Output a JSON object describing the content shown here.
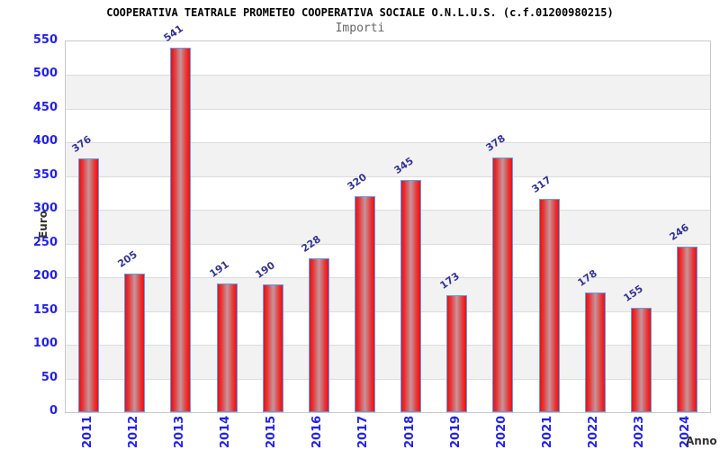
{
  "header": {
    "title": "COOPERATIVA TEATRALE PROMETEO COOPERATIVA SOCIALE O.N.L.U.S. (c.f.01200980215)",
    "subtitle": "Importi"
  },
  "chart_data": {
    "type": "bar",
    "title": "COOPERATIVA TEATRALE PROMETEO COOPERATIVA SOCIALE O.N.L.U.S. (c.f.01200980215)",
    "subtitle": "Importi",
    "categories": [
      "2011",
      "2012",
      "2013",
      "2014",
      "2015",
      "2016",
      "2017",
      "2018",
      "2019",
      "2020",
      "2021",
      "2022",
      "2023",
      "2024"
    ],
    "values": [
      376,
      205,
      541,
      191,
      190,
      228,
      320,
      345,
      173,
      378,
      317,
      178,
      155,
      246
    ],
    "xlabel": "Anno",
    "ylabel": "Euro",
    "ylim": [
      0,
      550
    ],
    "ytick_step": 50,
    "grid": true,
    "legend": "none",
    "colors": {
      "bar_red": "#ee0e0e",
      "bar_center": "#c6969a",
      "bar_border": "#58a0f5",
      "tick_label": "#2222ee",
      "value_label": "#333399",
      "axis_title": "#333333",
      "gridline": "#dcdcdc",
      "band_gray": "#f2f2f2",
      "plot_border": "#c8c8c8",
      "title": "#000000",
      "subtitle": "#666666"
    }
  }
}
